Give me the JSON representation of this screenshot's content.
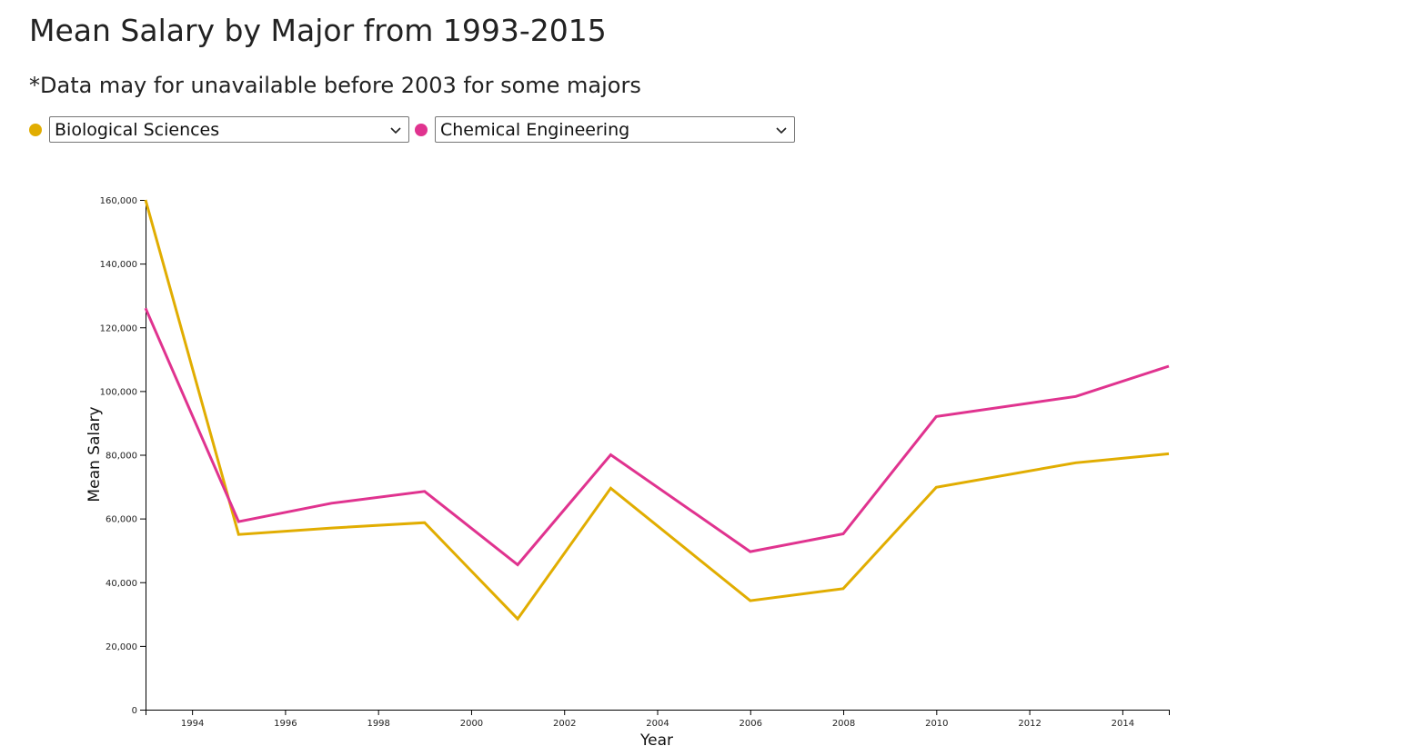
{
  "header": {
    "title": "Mean Salary by Major from 1993-2015",
    "subtitle": "*Data may for unavailable before 2003 for some majors"
  },
  "controls": {
    "left_select": {
      "value": "Biological Sciences",
      "color": "#e1ad01",
      "icon": "chevron-down-icon"
    },
    "right_select": {
      "value": "Chemical Engineering",
      "color": "#e0338f",
      "icon": "chevron-down-icon"
    }
  },
  "chart_data": {
    "type": "line",
    "title": "",
    "xlabel": "Year",
    "ylabel": "Mean Salary",
    "xlim": [
      1993,
      2015
    ],
    "ylim": [
      0,
      160000
    ],
    "x_ticks": [
      1994,
      1996,
      1998,
      2000,
      2002,
      2004,
      2006,
      2008,
      2010,
      2012,
      2014
    ],
    "y_ticks": [
      0,
      20000,
      40000,
      60000,
      80000,
      100000,
      120000,
      140000,
      160000
    ],
    "y_tick_labels": [
      "0",
      "20,000",
      "40,000",
      "60,000",
      "80,000",
      "100,000",
      "120,000",
      "140,000",
      "160,000"
    ],
    "grid": false,
    "legend": "none",
    "series": [
      {
        "color": "#e1ad01",
        "x": [
          1993,
          1995,
          1997,
          1999,
          2001,
          2003,
          2006,
          2008,
          2010,
          2013,
          2015
        ],
        "values": [
          160000,
          55000,
          57000,
          58700,
          28500,
          69500,
          34200,
          38000,
          69800,
          77500,
          80300
        ]
      },
      {
        "color": "#e0338f",
        "x": [
          1993,
          1995,
          1997,
          1999,
          2001,
          2003,
          2006,
          2008,
          2010,
          2013,
          2015
        ],
        "values": [
          126000,
          59000,
          64800,
          68500,
          45500,
          80000,
          49600,
          55200,
          92000,
          98300,
          107800
        ]
      }
    ]
  }
}
